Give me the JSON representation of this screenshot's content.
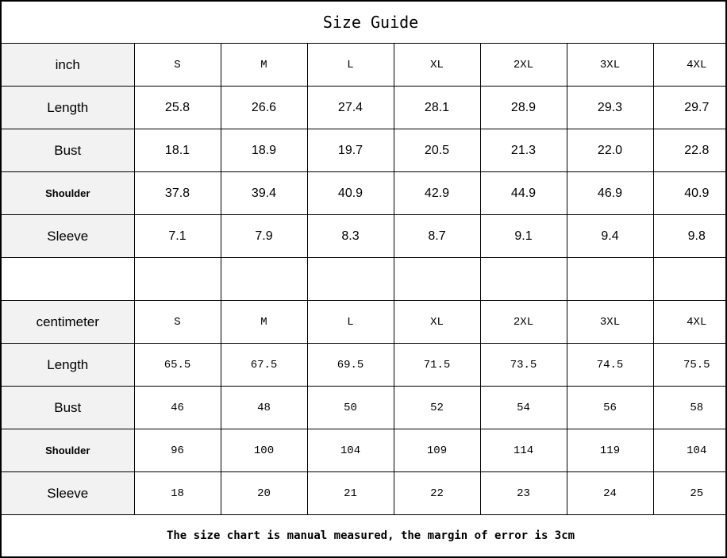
{
  "title": "Size Guide",
  "sizes": [
    "S",
    "M",
    "L",
    "XL",
    "2XL",
    "3XL",
    "4XL"
  ],
  "inch": {
    "unit_label": "inch",
    "rows": [
      {
        "label": "Length",
        "values": [
          "25.8",
          "26.6",
          "27.4",
          "28.1",
          "28.9",
          "29.3",
          "29.7"
        ]
      },
      {
        "label": "Bust",
        "values": [
          "18.1",
          "18.9",
          "19.7",
          "20.5",
          "21.3",
          "22.0",
          "22.8"
        ]
      },
      {
        "label": "Shoulder",
        "values": [
          "37.8",
          "39.4",
          "40.9",
          "42.9",
          "44.9",
          "46.9",
          "40.9"
        ]
      },
      {
        "label": "Sleeve",
        "values": [
          "7.1",
          "7.9",
          "8.3",
          "8.7",
          "9.1",
          "9.4",
          "9.8"
        ]
      }
    ]
  },
  "centimeter": {
    "unit_label": "centimeter",
    "rows": [
      {
        "label": "Length",
        "values": [
          "65.5",
          "67.5",
          "69.5",
          "71.5",
          "73.5",
          "74.5",
          "75.5"
        ]
      },
      {
        "label": "Bust",
        "values": [
          "46",
          "48",
          "50",
          "52",
          "54",
          "56",
          "58"
        ]
      },
      {
        "label": "Shoulder",
        "values": [
          "96",
          "100",
          "104",
          "109",
          "114",
          "119",
          "104"
        ]
      },
      {
        "label": "Sleeve",
        "values": [
          "18",
          "20",
          "21",
          "22",
          "23",
          "24",
          "25"
        ]
      }
    ]
  },
  "footer": "The size chart is manual measured, the margin of error is 3cm",
  "colors": {
    "label_bg": "#f2f2f2",
    "border": "#000000"
  }
}
